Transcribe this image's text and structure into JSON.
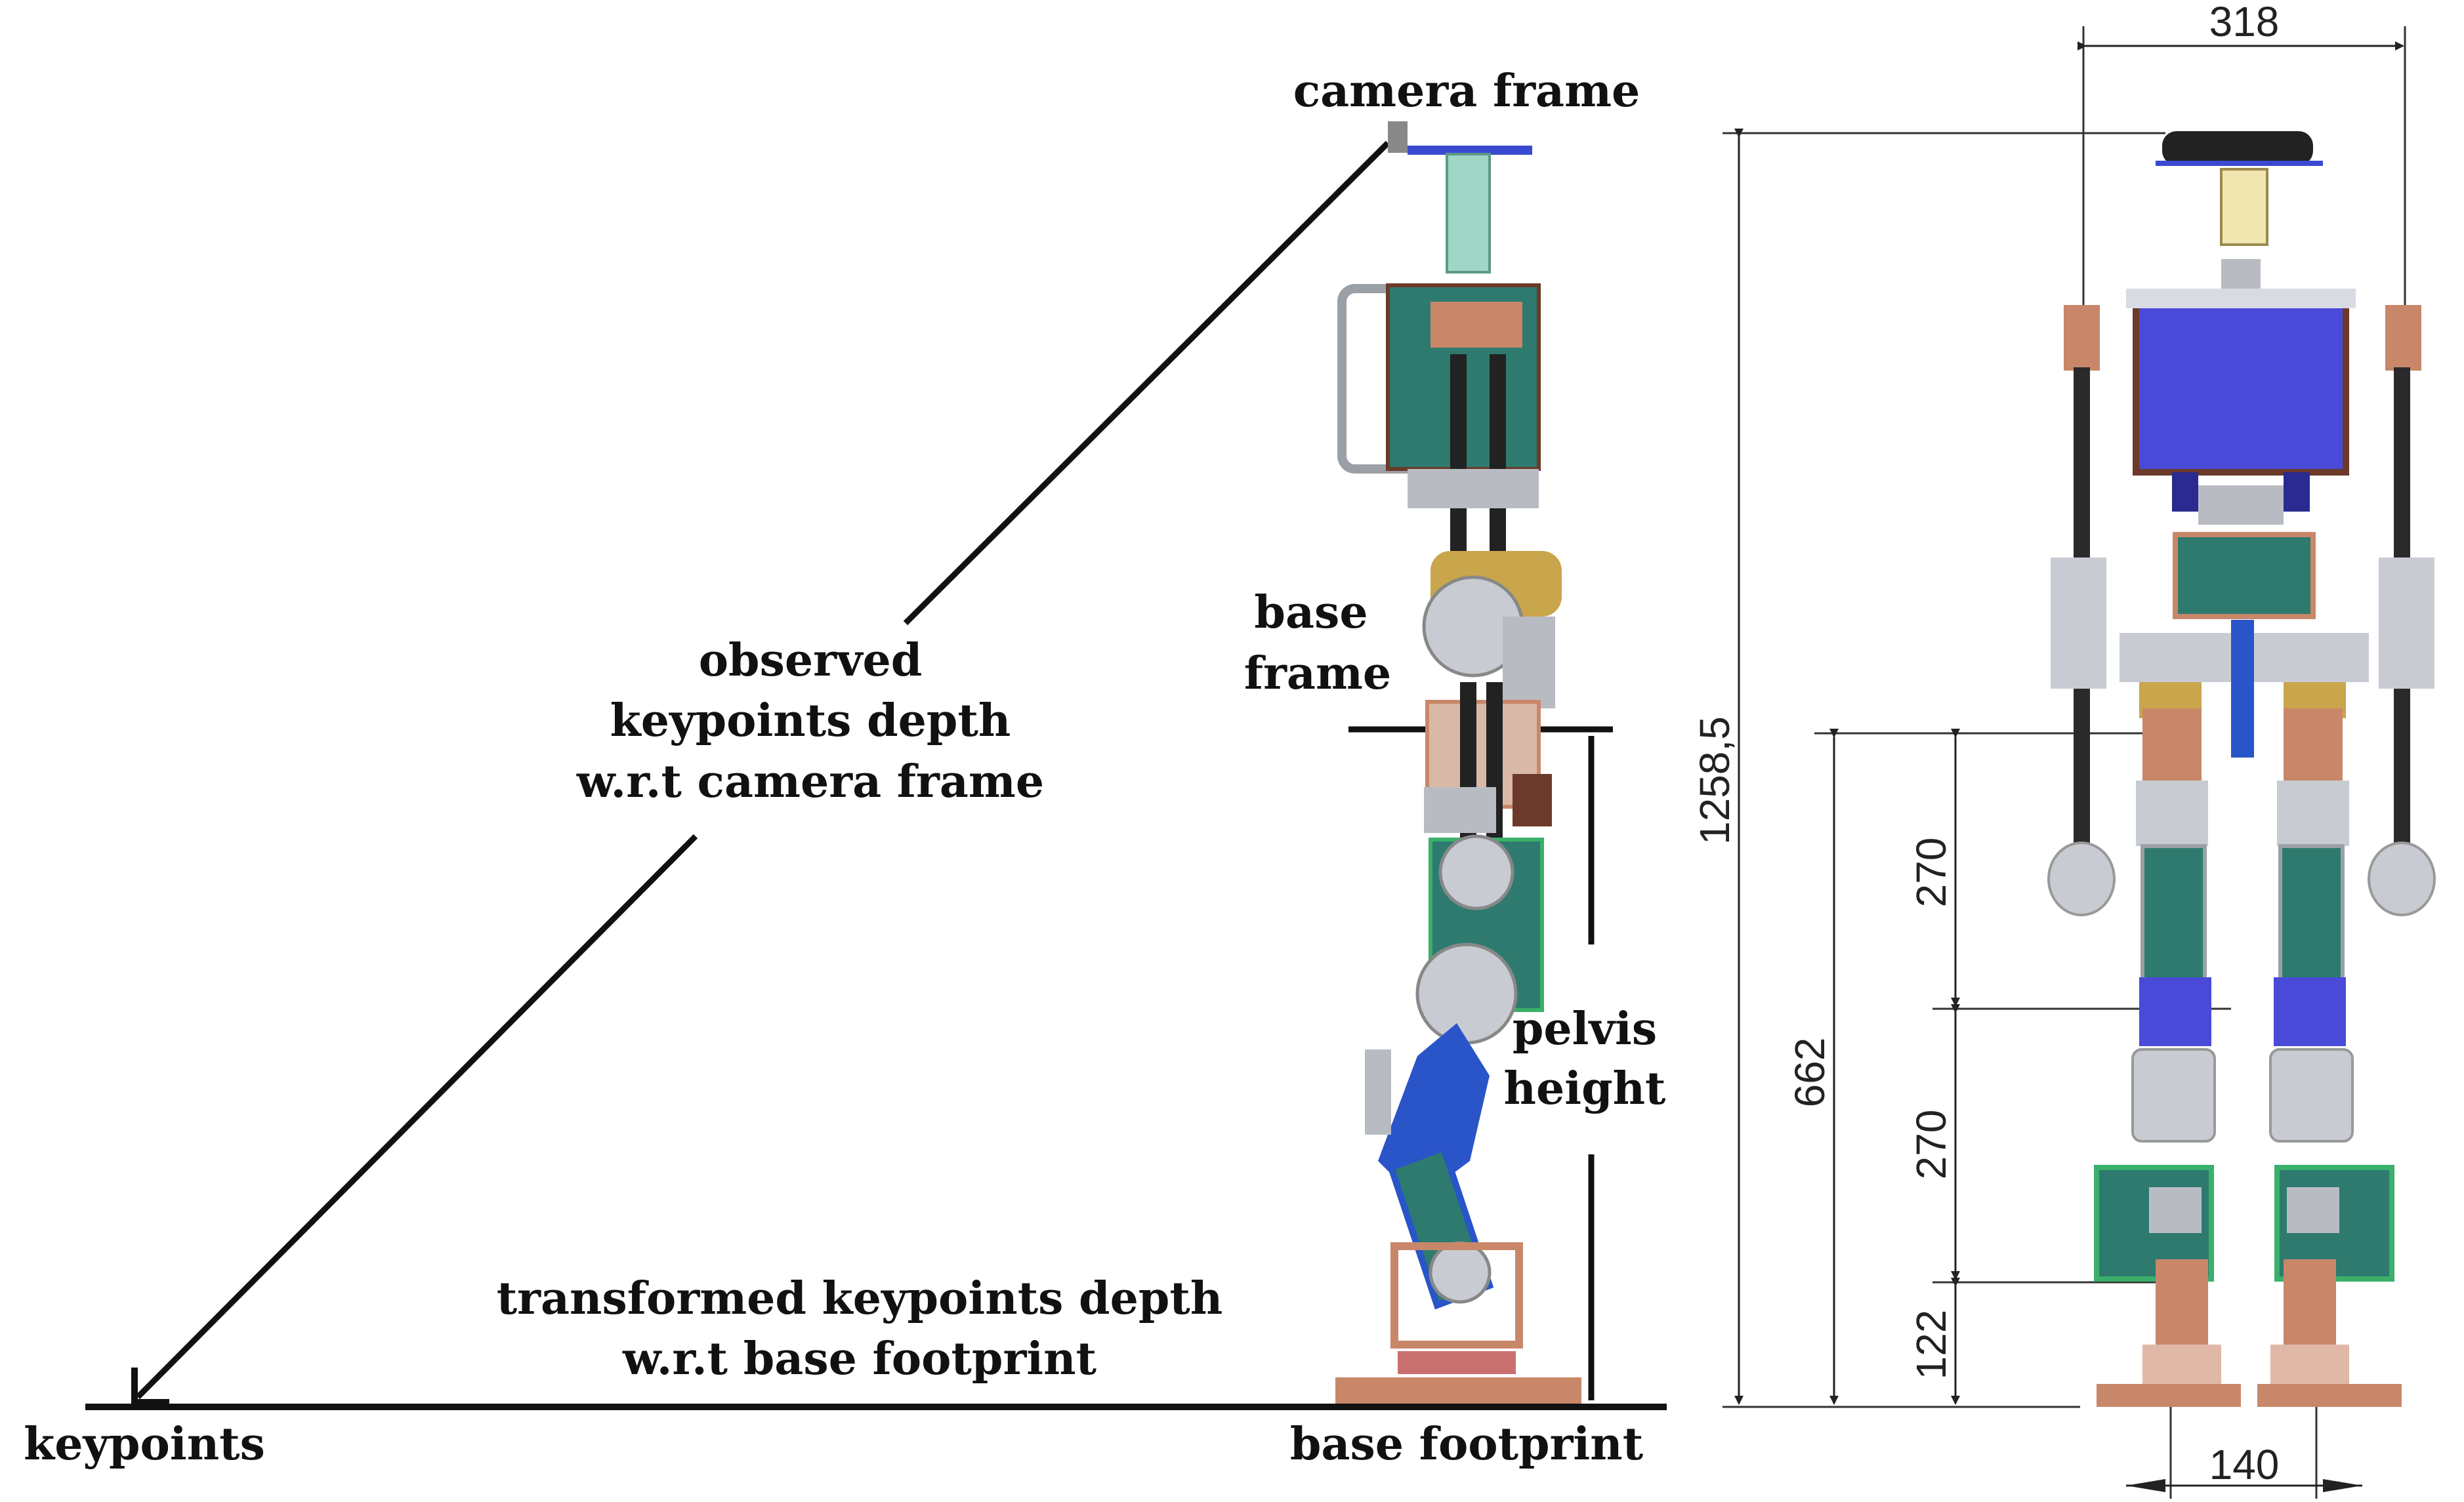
{
  "labels": {
    "camera_frame": "camera frame",
    "observed_line1": "observed",
    "observed_line2": "keypoints depth",
    "observed_line3": "w.r.t camera frame",
    "base_frame_line1": "base",
    "base_frame_line2": "frame",
    "pelvis_line1": "pelvis",
    "pelvis_line2": "height",
    "transformed_line1": "transformed keypoints depth",
    "transformed_line2": "w.r.t base footprint",
    "keypoints": "keypoints",
    "base_footprint": "base footprint"
  },
  "dimensions": {
    "width_top": "318",
    "total_height": "1258,5",
    "pelvis_height": "662",
    "upper_leg": "270",
    "lower_leg": "270",
    "ankle": "122",
    "foot_spacing": "140"
  },
  "colors": {
    "line": "#111111",
    "torso_blue": "#4a4ad8",
    "link_blue": "#2a55c8",
    "teal": "#2e7a6e",
    "copper": "#c9876a",
    "dark_brown": "#6b3a2a",
    "gray": "#b8bcc2",
    "black_rod": "#222222"
  }
}
